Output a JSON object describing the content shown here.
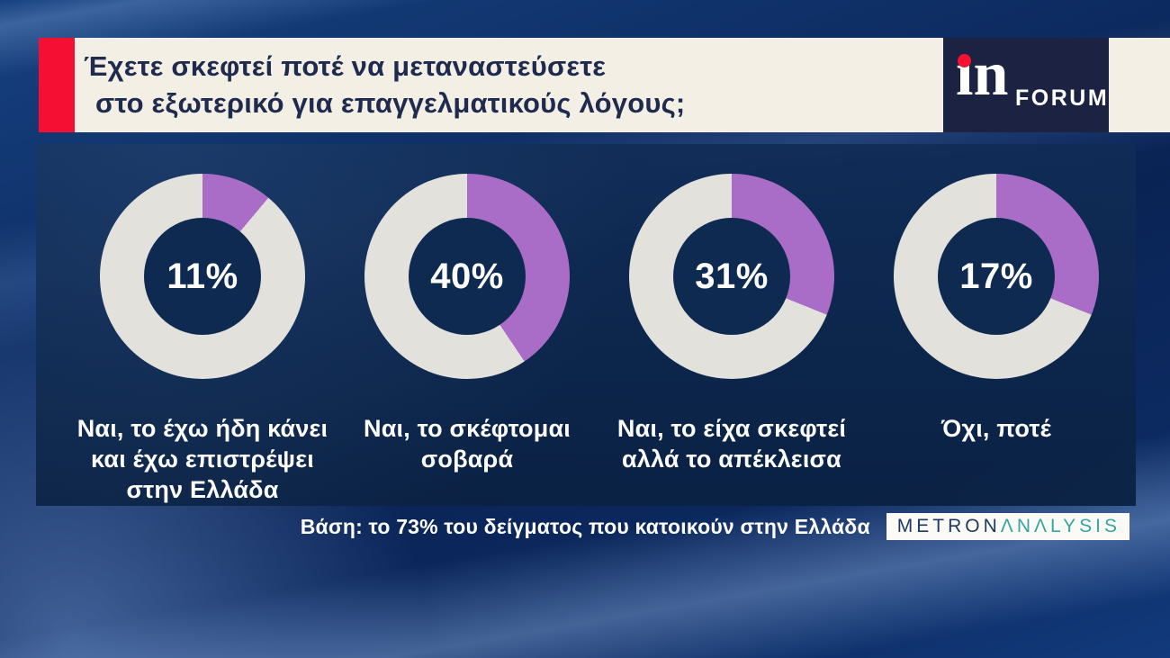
{
  "header": {
    "question_line1": "Έχετε σκεφτεί ποτέ να μεταναστεύσετε",
    "question_line2": "στο εξωτερικό για επαγγελματικούς λόγους;",
    "logo": {
      "wordmark": "in",
      "wordmark_dotless": "ın",
      "suffix": "FORUM"
    }
  },
  "chart_data": {
    "type": "pie",
    "subtype": "donut",
    "title": "Έχετε σκεφτεί ποτέ να μεταναστεύσετε στο εξωτερικό για επαγγελματικούς λόγους;",
    "categories": [
      "Ναι, το έχω ήδη κάνει και έχω επιστρέψει στην Ελλάδα",
      "Ναι, το σκέφτομαι σοβαρά",
      "Ναι, το είχα σκεφτεί αλλά το απέκλεισα",
      "Όχι, ποτέ"
    ],
    "values": [
      11,
      40,
      31,
      17
    ],
    "unit": "%",
    "label_lines": [
      [
        "Ναι, το έχω ήδη κάνει",
        "και έχω επιστρέψει",
        "στην Ελλάδα"
      ],
      [
        "Ναι, το σκέφτομαι",
        "σοβαρά"
      ],
      [
        "Ναι, το είχα σκεφτεί",
        "αλλά το απέκλεισα"
      ],
      [
        "Όχι, ποτέ"
      ]
    ],
    "layout": {
      "legend": "none",
      "start_angle_deg": 0,
      "direction": "clockwise",
      "visual_sweep_deg": [
        40,
        146,
        112,
        112
      ],
      "note": "segments start at 12 o'clock; the 17% donut is drawn with a ~112° sweep in the source graphic"
    }
  },
  "footer": {
    "base_note": "Βάση: το 73% του δείγματος που κατοικούν στην Ελλάδα",
    "source_logo": {
      "part1": "METRON",
      "part2": "ΛNΛLYSIS"
    }
  },
  "colors": {
    "segment-purple": "#a96cc7",
    "segment-gray": "#e3e1dc",
    "panel-navy": "#0d2950",
    "header-cream": "#f3efe4",
    "header-text": "#1e2a4e",
    "brand-red": "#f50f33",
    "logo-navy": "#1c2342",
    "metron-navy": "#1d3a5e",
    "metron-teal": "#35a79e"
  }
}
